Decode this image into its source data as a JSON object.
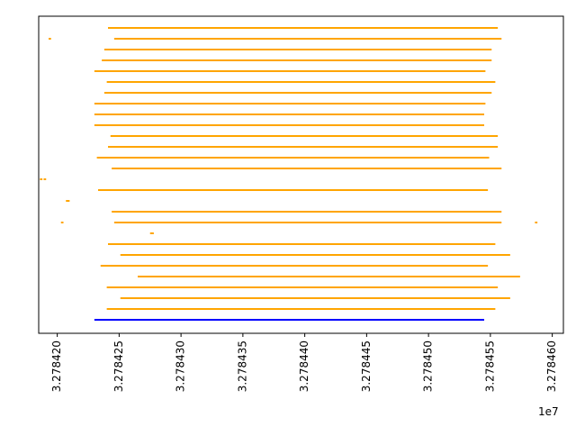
{
  "chart_data": {
    "type": "hlines",
    "x_offset_label": "1e7",
    "xlim": [
      32784185,
      32784609
    ],
    "xticks": [
      {
        "value": 32784200,
        "label": "3.278420"
      },
      {
        "value": 32784250,
        "label": "3.278425"
      },
      {
        "value": 32784300,
        "label": "3.278430"
      },
      {
        "value": 32784350,
        "label": "3.278435"
      },
      {
        "value": 32784400,
        "label": "3.278440"
      },
      {
        "value": 32784450,
        "label": "3.278445"
      },
      {
        "value": 32784500,
        "label": "3.278450"
      },
      {
        "value": 32784550,
        "label": "3.278455"
      },
      {
        "value": 32784600,
        "label": "3.278460"
      }
    ],
    "rows": [
      {
        "color": "orange",
        "segments": [
          [
            32784241,
            32784556
          ]
        ]
      },
      {
        "color": "orange",
        "segments": [
          [
            32784193,
            32784195
          ],
          [
            32784246,
            32784559
          ]
        ]
      },
      {
        "color": "orange",
        "segments": [
          [
            32784238,
            32784551
          ]
        ]
      },
      {
        "color": "orange",
        "segments": [
          [
            32784236,
            32784551
          ]
        ]
      },
      {
        "color": "orange",
        "segments": [
          [
            32784230,
            32784546
          ]
        ]
      },
      {
        "color": "orange",
        "segments": [
          [
            32784240,
            32784554
          ]
        ]
      },
      {
        "color": "orange",
        "segments": [
          [
            32784238,
            32784551
          ]
        ]
      },
      {
        "color": "orange",
        "segments": [
          [
            32784230,
            32784546
          ]
        ]
      },
      {
        "color": "orange",
        "segments": [
          [
            32784230,
            32784545
          ]
        ]
      },
      {
        "color": "orange",
        "segments": [
          [
            32784230,
            32784545
          ]
        ]
      },
      {
        "color": "orange",
        "segments": [
          [
            32784243,
            32784556
          ]
        ]
      },
      {
        "color": "orange",
        "segments": [
          [
            32784241,
            32784556
          ]
        ]
      },
      {
        "color": "orange",
        "segments": [
          [
            32784232,
            32784549
          ]
        ]
      },
      {
        "color": "orange",
        "segments": [
          [
            32784244,
            32784559
          ]
        ]
      },
      {
        "color": "orange",
        "segments": [
          [
            32784186,
            32784188
          ],
          [
            32784189,
            32784191
          ]
        ]
      },
      {
        "color": "orange",
        "segments": [
          [
            32784233,
            32784548
          ]
        ]
      },
      {
        "color": "orange",
        "segments": [
          [
            32784207,
            32784210
          ]
        ]
      },
      {
        "color": "orange",
        "segments": [
          [
            32784244,
            32784559
          ]
        ]
      },
      {
        "color": "orange",
        "segments": [
          [
            32784203,
            32784205
          ],
          [
            32784246,
            32784559
          ],
          [
            32784586,
            32784588
          ]
        ]
      },
      {
        "color": "orange",
        "segments": [
          [
            32784275,
            32784278
          ]
        ]
      },
      {
        "color": "orange",
        "segments": [
          [
            32784241,
            32784554
          ]
        ]
      },
      {
        "color": "orange",
        "segments": [
          [
            32784251,
            32784566
          ]
        ]
      },
      {
        "color": "orange",
        "segments": [
          [
            32784235,
            32784548
          ]
        ]
      },
      {
        "color": "orange",
        "segments": [
          [
            32784265,
            32784574
          ]
        ]
      },
      {
        "color": "orange",
        "segments": [
          [
            32784240,
            32784556
          ]
        ]
      },
      {
        "color": "orange",
        "segments": [
          [
            32784251,
            32784566
          ]
        ]
      },
      {
        "color": "orange",
        "segments": [
          [
            32784240,
            32784554
          ]
        ]
      },
      {
        "color": "blue",
        "segments": [
          [
            32784230,
            32784545
          ]
        ]
      }
    ]
  }
}
